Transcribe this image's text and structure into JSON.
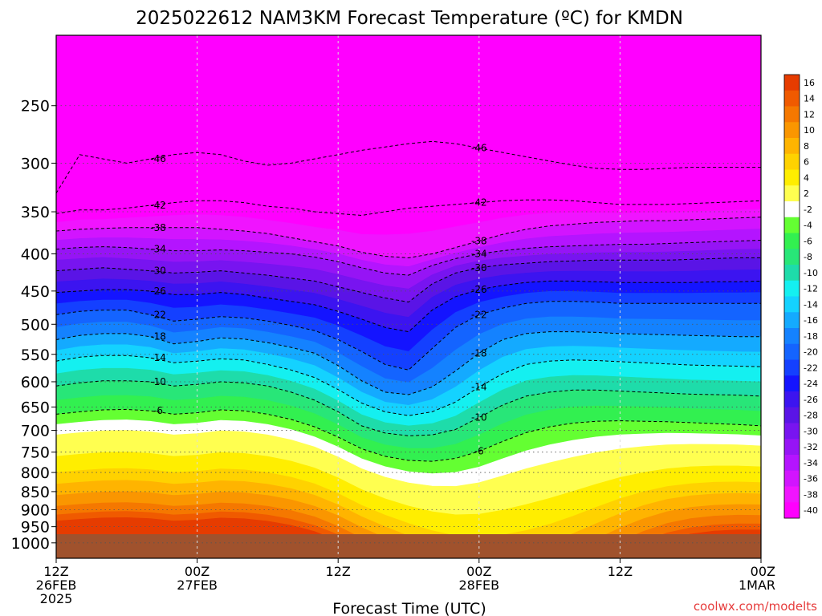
{
  "chart_data": {
    "type": "heatmap",
    "title": "2025022612 NAM3KM Forecast Temperature (ºC) for KMDN",
    "xlabel": "Forecast Time (UTC)",
    "ylabel": "",
    "watermark": "coolwx.com/modelts",
    "y_axis": {
      "scale": "log-pressure",
      "unit": "hPa",
      "range": [
        1050,
        200
      ],
      "ticks": [
        250,
        300,
        350,
        400,
        450,
        500,
        550,
        600,
        650,
        700,
        750,
        800,
        850,
        900,
        950,
        1000
      ]
    },
    "x_axis": {
      "unit": "forecast hours",
      "range": [
        0,
        60
      ],
      "ticks": [
        {
          "hour": 0,
          "lines": [
            "12Z",
            "26FEB",
            "2025"
          ]
        },
        {
          "hour": 12,
          "lines": [
            "00Z",
            "27FEB"
          ]
        },
        {
          "hour": 24,
          "lines": [
            "12Z"
          ]
        },
        {
          "hour": 36,
          "lines": [
            "00Z",
            "28FEB"
          ]
        },
        {
          "hour": 48,
          "lines": [
            "12Z"
          ]
        },
        {
          "hour": 60,
          "lines": [
            "00Z",
            "1MAR"
          ]
        }
      ]
    },
    "colorbar": {
      "levels": [
        16,
        14,
        12,
        10,
        8,
        6,
        4,
        2,
        -2,
        -4,
        -6,
        -8,
        -10,
        -12,
        -14,
        -16,
        -18,
        -20,
        -22,
        -24,
        -26,
        -28,
        -30,
        -32,
        -34,
        -36,
        -38,
        -40
      ],
      "colors": [
        "#e63c00",
        "#f05a00",
        "#f57800",
        "#fa9600",
        "#ffb400",
        "#ffd200",
        "#ffee00",
        "#ffff50",
        "#ffffff",
        "#64ff32",
        "#32f050",
        "#28e678",
        "#1edcaa",
        "#14f0f0",
        "#14d2ff",
        "#14aaff",
        "#1482ff",
        "#1464ff",
        "#1440ff",
        "#1414ff",
        "#3c14f0",
        "#5a14e6",
        "#7814f0",
        "#9614f5",
        "#b414ff",
        "#d214ff",
        "#f014ff",
        "#ff00ff"
      ]
    },
    "ground_color": "#a0522d",
    "grid": true,
    "isotherms": [
      {
        "value": -46,
        "pressures": [
          330,
          292,
          296,
          300,
          296,
          292,
          290,
          292,
          298,
          302,
          300,
          296,
          292,
          288,
          285,
          282,
          280,
          282,
          286,
          290,
          294,
          298,
          302,
          305,
          306,
          306,
          305,
          304,
          304,
          304,
          304
        ]
      },
      {
        "value": -42,
        "pressures": [
          352,
          348,
          348,
          346,
          343,
          340,
          338,
          338,
          340,
          344,
          346,
          350,
          352,
          354,
          350,
          346,
          344,
          342,
          340,
          338,
          337,
          337,
          338,
          340,
          342,
          342,
          342,
          341,
          340,
          339,
          338
        ]
      },
      {
        "value": -38,
        "pressures": [
          372,
          370,
          369,
          368,
          368,
          368,
          368,
          370,
          372,
          375,
          380,
          385,
          390,
          398,
          403,
          405,
          400,
          392,
          384,
          376,
          370,
          366,
          364,
          362,
          361,
          360,
          360,
          359,
          358,
          357,
          356
        ]
      },
      {
        "value": -34,
        "pressures": [
          394,
          392,
          391,
          392,
          394,
          396,
          396,
          395,
          396,
          398,
          400,
          404,
          410,
          418,
          425,
          428,
          415,
          406,
          400,
          396,
          393,
          391,
          390,
          389,
          388,
          388,
          387,
          386,
          385,
          384,
          383
        ]
      },
      {
        "value": -30,
        "pressures": [
          422,
          420,
          418,
          420,
          422,
          425,
          424,
          422,
          425,
          428,
          432,
          436,
          444,
          452,
          460,
          466,
          440,
          425,
          418,
          414,
          412,
          410,
          409,
          408,
          408,
          408,
          408,
          407,
          406,
          405,
          405
        ]
      },
      {
        "value": -26,
        "pressures": [
          452,
          450,
          448,
          448,
          450,
          455,
          455,
          452,
          455,
          460,
          465,
          470,
          480,
          492,
          505,
          512,
          478,
          458,
          448,
          442,
          438,
          436,
          436,
          437,
          438,
          438,
          438,
          438,
          437,
          437,
          436
        ]
      },
      {
        "value": -22,
        "pressures": [
          485,
          480,
          478,
          478,
          485,
          495,
          492,
          488,
          490,
          495,
          502,
          510,
          525,
          545,
          568,
          578,
          540,
          505,
          485,
          475,
          468,
          465,
          465,
          466,
          468,
          468,
          468,
          468,
          468,
          468,
          468
        ]
      },
      {
        "value": -18,
        "pressures": [
          525,
          518,
          515,
          515,
          520,
          532,
          528,
          522,
          524,
          530,
          538,
          548,
          570,
          598,
          620,
          625,
          610,
          580,
          548,
          525,
          515,
          512,
          512,
          513,
          515,
          516,
          517,
          518,
          519,
          520,
          520
        ]
      },
      {
        "value": -14,
        "pressures": [
          562,
          555,
          552,
          552,
          556,
          565,
          562,
          558,
          560,
          568,
          578,
          592,
          615,
          642,
          660,
          668,
          660,
          640,
          610,
          585,
          568,
          562,
          560,
          561,
          563,
          565,
          567,
          569,
          570,
          571,
          572
        ]
      },
      {
        "value": -10,
        "pressures": [
          608,
          602,
          598,
          598,
          600,
          608,
          605,
          600,
          602,
          608,
          620,
          636,
          660,
          690,
          706,
          712,
          710,
          698,
          672,
          646,
          628,
          620,
          616,
          616,
          618,
          620,
          622,
          624,
          625,
          626,
          628
        ]
      },
      {
        "value": -6,
        "pressures": [
          665,
          660,
          656,
          655,
          658,
          665,
          662,
          656,
          658,
          665,
          676,
          692,
          715,
          742,
          760,
          770,
          772,
          765,
          748,
          725,
          705,
          692,
          684,
          680,
          679,
          680,
          681,
          683,
          685,
          687,
          690
        ]
      }
    ]
  }
}
